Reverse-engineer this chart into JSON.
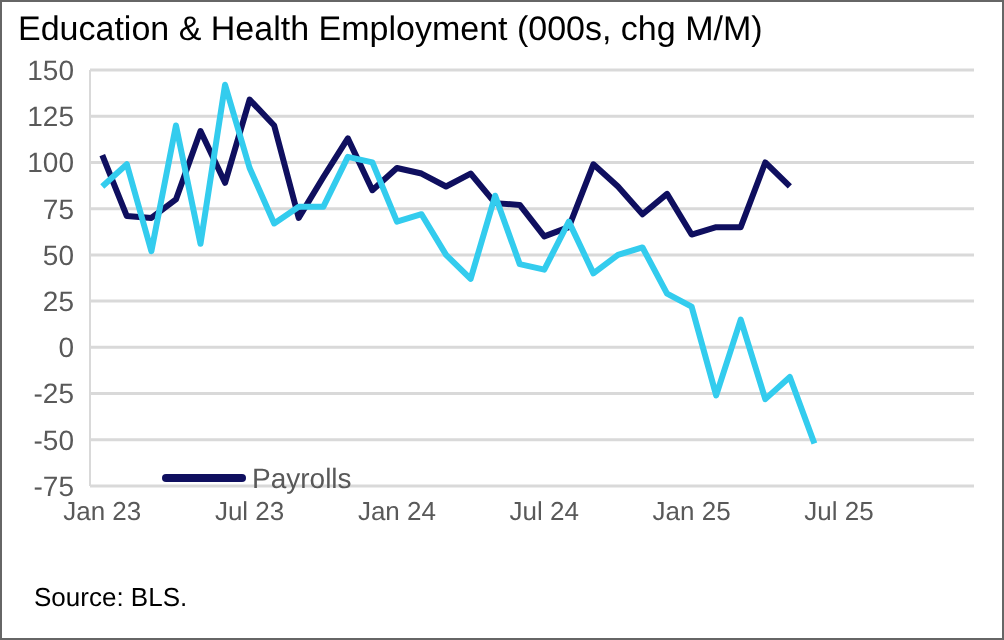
{
  "chart_data": {
    "type": "line",
    "title": "Education & Health Employment (000s, chg M/M)",
    "categories": [
      "Jan 23",
      null,
      null,
      null,
      null,
      null,
      "Jul 23",
      null,
      null,
      null,
      null,
      null,
      "Jan 24",
      null,
      null,
      null,
      null,
      null,
      "Jul 24",
      null,
      null,
      null,
      null,
      null,
      "Jan 25",
      null,
      null,
      null,
      null,
      null,
      "Jul 25",
      null,
      null,
      null,
      null,
      null
    ],
    "series": [
      {
        "name": "Payrolls",
        "color": "#0f0f5f",
        "values": [
          104,
          71,
          70,
          80,
          117,
          89,
          134,
          120,
          70,
          92,
          113,
          85,
          97,
          94,
          87,
          94,
          78,
          77,
          60,
          65,
          99,
          87,
          72,
          83,
          61,
          65,
          65,
          100,
          87,
          null,
          null,
          null,
          null,
          null,
          null,
          null
        ]
      },
      {
        "color": "#33ccee",
        "values": [
          87,
          99,
          52,
          120,
          56,
          142,
          97,
          67,
          76,
          76,
          103,
          100,
          68,
          72,
          50,
          37,
          82,
          45,
          42,
          68,
          40,
          50,
          54,
          29,
          22,
          -26,
          15,
          -28,
          -16,
          -52,
          null,
          null,
          null,
          null,
          null,
          null
        ]
      }
    ],
    "ylim": [
      -75,
      150
    ],
    "yticks": [
      -75,
      -50,
      -25,
      0,
      25,
      50,
      75,
      100,
      125,
      150
    ],
    "grid": "y",
    "legend": "bottom left",
    "marker": "none",
    "line_style": "solid",
    "annotations": [
      "Source: BLS."
    ]
  }
}
